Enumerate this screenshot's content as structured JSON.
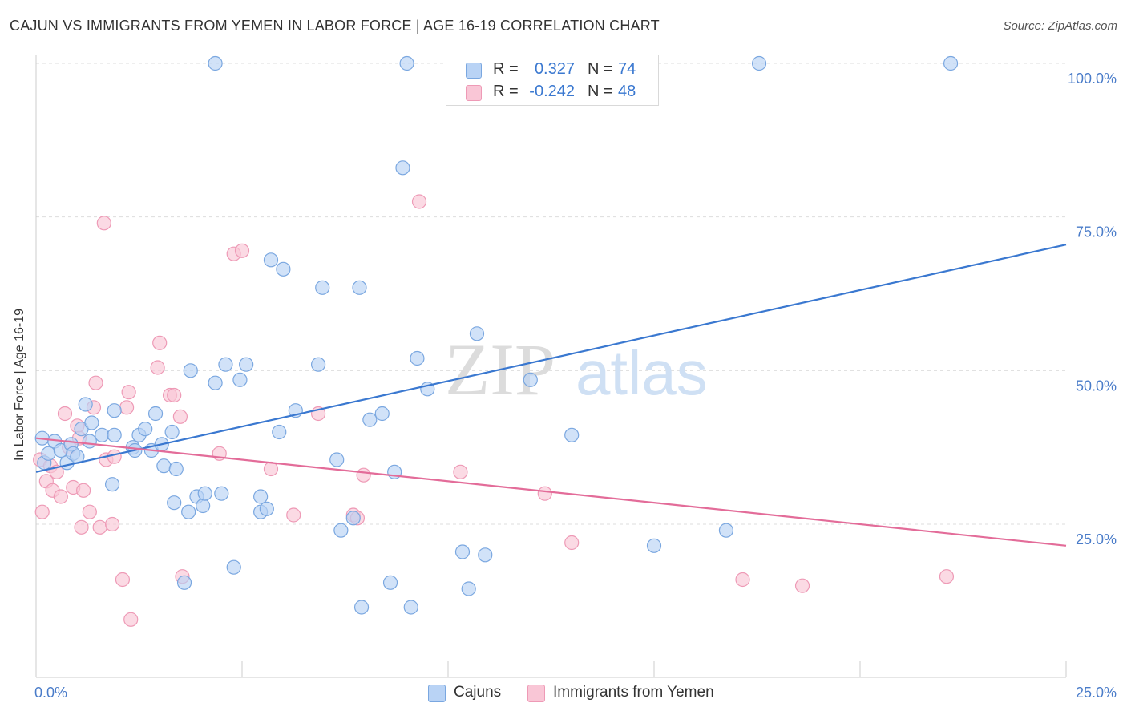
{
  "header": {
    "title": "CAJUN VS IMMIGRANTS FROM YEMEN IN LABOR FORCE | AGE 16-19 CORRELATION CHART",
    "source": "Source: ZipAtlas.com"
  },
  "watermark": {
    "text": "ZIPatlas"
  },
  "colors": {
    "blue_fill": "#b9d3f5",
    "blue_stroke": "#7aa7e0",
    "blue_line": "#3a78d0",
    "pink_fill": "#f9c6d6",
    "pink_stroke": "#ee9ab6",
    "pink_line": "#e36c99",
    "tick_label": "#4a7cc9",
    "grid": "#dddddd"
  },
  "legend_top": [
    {
      "r_label": "R =",
      "r_value": "0.327",
      "n_label": "N =",
      "n_value": "74",
      "color": "blue"
    },
    {
      "r_label": "R =",
      "r_value": "-0.242",
      "n_label": "N =",
      "n_value": "48",
      "color": "pink"
    }
  ],
  "legend_bottom": [
    {
      "label": "Cajuns",
      "color": "blue"
    },
    {
      "label": "Immigrants from Yemen",
      "color": "pink"
    }
  ],
  "chart_data": {
    "type": "scatter",
    "title": "CAJUN VS IMMIGRANTS FROM YEMEN IN LABOR FORCE | AGE 16-19 CORRELATION CHART",
    "xlabel": "",
    "ylabel": "In Labor Force | Age 16-19",
    "xlim": [
      0,
      25
    ],
    "ylim": [
      0,
      102
    ],
    "x_tick_labels": [
      {
        "value": 0,
        "label": "0.0%"
      },
      {
        "value": 25,
        "label": "25.0%"
      }
    ],
    "y_tick_labels": [
      {
        "value": 100,
        "label": "100.0%"
      },
      {
        "value": 75,
        "label": "75.0%"
      },
      {
        "value": 50,
        "label": "50.0%"
      },
      {
        "value": 25,
        "label": "25.0%"
      }
    ],
    "grid": "horizontal dashed",
    "legend_position": "top-center",
    "series": [
      {
        "name": "Cajuns",
        "color": "blue",
        "trend": {
          "x": [
            0,
            25
          ],
          "y": [
            33.5,
            70.5
          ]
        },
        "points": [
          [
            0.15,
            39
          ],
          [
            0.2,
            35
          ],
          [
            0.3,
            36.5
          ],
          [
            0.45,
            38.5
          ],
          [
            0.6,
            37
          ],
          [
            0.75,
            35
          ],
          [
            0.85,
            38
          ],
          [
            0.9,
            36.5
          ],
          [
            1.1,
            40.5
          ],
          [
            1.2,
            44.5
          ],
          [
            1.35,
            41.5
          ],
          [
            1.6,
            39.5
          ],
          [
            1.9,
            43.5
          ],
          [
            1.3,
            38.5
          ],
          [
            1.85,
            31.5
          ],
          [
            1.9,
            39.5
          ],
          [
            2.35,
            37.5
          ],
          [
            2.5,
            39.5
          ],
          [
            2.65,
            40.5
          ],
          [
            2.8,
            37
          ],
          [
            2.9,
            43
          ],
          [
            3.05,
            38
          ],
          [
            3.1,
            34.5
          ],
          [
            3.3,
            40
          ],
          [
            3.35,
            28.5
          ],
          [
            3.6,
            15.5
          ],
          [
            3.7,
            27
          ],
          [
            3.75,
            50
          ],
          [
            3.9,
            29.5
          ],
          [
            4.05,
            28
          ],
          [
            4.1,
            30
          ],
          [
            4.35,
            48
          ],
          [
            4.5,
            30
          ],
          [
            4.6,
            51
          ],
          [
            4.8,
            18
          ],
          [
            4.95,
            48.5
          ],
          [
            5.1,
            51
          ],
          [
            5.45,
            29.5
          ],
          [
            5.45,
            27
          ],
          [
            5.6,
            27.5
          ],
          [
            5.7,
            68
          ],
          [
            5.9,
            40
          ],
          [
            6.0,
            66.5
          ],
          [
            6.3,
            43.5
          ],
          [
            6.85,
            51
          ],
          [
            6.95,
            63.5
          ],
          [
            7.3,
            35.5
          ],
          [
            7.4,
            24
          ],
          [
            7.7,
            26
          ],
          [
            7.85,
            63.5
          ],
          [
            7.9,
            11.5
          ],
          [
            8.1,
            42
          ],
          [
            8.4,
            43
          ],
          [
            8.6,
            15.5
          ],
          [
            8.7,
            33.5
          ],
          [
            8.9,
            83
          ],
          [
            9.1,
            11.5
          ],
          [
            9.25,
            52
          ],
          [
            9.5,
            47
          ],
          [
            10.35,
            20.5
          ],
          [
            10.5,
            14.5
          ],
          [
            10.7,
            56
          ],
          [
            10.9,
            20
          ],
          [
            12.0,
            48.5
          ],
          [
            13.0,
            39.5
          ],
          [
            15.0,
            21.5
          ],
          [
            16.75,
            24
          ],
          [
            4.35,
            100
          ],
          [
            9.0,
            100
          ],
          [
            17.55,
            100
          ],
          [
            22.2,
            100
          ],
          [
            2.4,
            37
          ],
          [
            3.4,
            34
          ],
          [
            1.0,
            36
          ]
        ]
      },
      {
        "name": "Immigrants from Yemen",
        "color": "pink",
        "trend": {
          "x": [
            0,
            25
          ],
          "y": [
            39,
            21.5
          ]
        },
        "points": [
          [
            0.1,
            35.5
          ],
          [
            0.15,
            27
          ],
          [
            0.25,
            32
          ],
          [
            0.35,
            34.5
          ],
          [
            0.4,
            30.5
          ],
          [
            0.5,
            33.5
          ],
          [
            0.6,
            29.5
          ],
          [
            0.7,
            43
          ],
          [
            0.8,
            37.5
          ],
          [
            0.9,
            31
          ],
          [
            1.0,
            41
          ],
          [
            1.05,
            39
          ],
          [
            1.15,
            30.5
          ],
          [
            1.1,
            24.5
          ],
          [
            1.3,
            27
          ],
          [
            1.4,
            44
          ],
          [
            1.45,
            48
          ],
          [
            1.55,
            24.5
          ],
          [
            1.7,
            35.5
          ],
          [
            1.85,
            25
          ],
          [
            1.9,
            36
          ],
          [
            2.1,
            16
          ],
          [
            2.2,
            44
          ],
          [
            2.25,
            46.5
          ],
          [
            2.3,
            9.5
          ],
          [
            1.65,
            74
          ],
          [
            2.95,
            50.5
          ],
          [
            3.0,
            54.5
          ],
          [
            3.25,
            46
          ],
          [
            3.35,
            46
          ],
          [
            3.5,
            42.5
          ],
          [
            3.55,
            16.5
          ],
          [
            4.45,
            36.5
          ],
          [
            4.8,
            69
          ],
          [
            5.0,
            69.5
          ],
          [
            5.7,
            34
          ],
          [
            6.25,
            26.5
          ],
          [
            6.85,
            43
          ],
          [
            7.7,
            26.5
          ],
          [
            7.8,
            26
          ],
          [
            7.95,
            33
          ],
          [
            9.3,
            77.5
          ],
          [
            10.3,
            33.5
          ],
          [
            12.35,
            30
          ],
          [
            13.0,
            22
          ],
          [
            17.15,
            16
          ],
          [
            18.6,
            15
          ],
          [
            22.1,
            16.5
          ]
        ]
      }
    ]
  }
}
